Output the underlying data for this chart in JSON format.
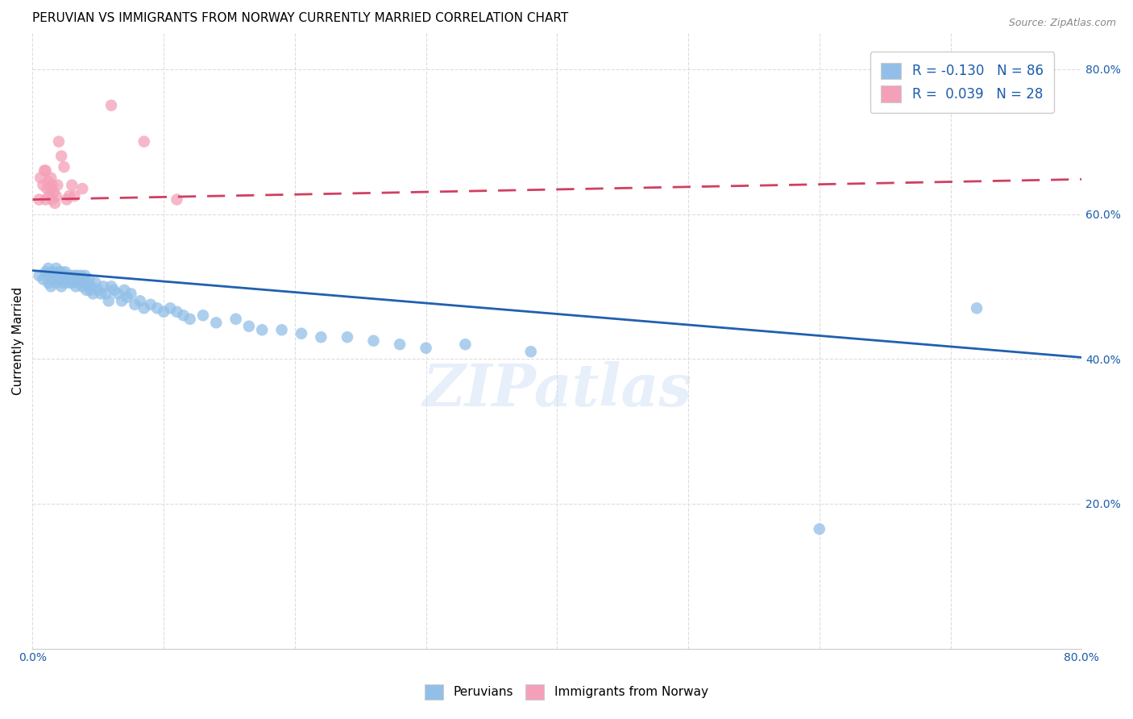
{
  "title": "PERUVIAN VS IMMIGRANTS FROM NORWAY CURRENTLY MARRIED CORRELATION CHART",
  "source": "Source: ZipAtlas.com",
  "ylabel": "Currently Married",
  "xlim": [
    0.0,
    0.8
  ],
  "ylim": [
    0.0,
    0.85
  ],
  "ytick_positions": [
    0.2,
    0.4,
    0.6,
    0.8
  ],
  "ytick_labels": [
    "20.0%",
    "40.0%",
    "60.0%",
    "80.0%"
  ],
  "blue_color": "#92bfe8",
  "pink_color": "#f4a0b8",
  "blue_line_color": "#2060b0",
  "pink_line_color": "#d04060",
  "blue_r": "-0.130",
  "blue_n": "86",
  "pink_r": "0.039",
  "pink_n": "28",
  "legend_r_color": "#1a5caa",
  "watermark": "ZIPatlas",
  "blue_points_x": [
    0.005,
    0.008,
    0.01,
    0.012,
    0.012,
    0.013,
    0.014,
    0.015,
    0.015,
    0.016,
    0.017,
    0.018,
    0.018,
    0.019,
    0.02,
    0.02,
    0.021,
    0.022,
    0.022,
    0.023,
    0.024,
    0.024,
    0.025,
    0.025,
    0.026,
    0.027,
    0.028,
    0.029,
    0.03,
    0.03,
    0.031,
    0.032,
    0.033,
    0.034,
    0.034,
    0.035,
    0.036,
    0.037,
    0.038,
    0.039,
    0.04,
    0.041,
    0.042,
    0.043,
    0.044,
    0.045,
    0.046,
    0.048,
    0.05,
    0.052,
    0.054,
    0.056,
    0.058,
    0.06,
    0.062,
    0.065,
    0.068,
    0.07,
    0.072,
    0.075,
    0.078,
    0.082,
    0.085,
    0.09,
    0.095,
    0.1,
    0.105,
    0.11,
    0.115,
    0.12,
    0.13,
    0.14,
    0.155,
    0.165,
    0.175,
    0.19,
    0.205,
    0.22,
    0.24,
    0.26,
    0.28,
    0.3,
    0.33,
    0.38,
    0.6,
    0.72
  ],
  "blue_points_y": [
    0.515,
    0.51,
    0.52,
    0.505,
    0.525,
    0.515,
    0.5,
    0.51,
    0.52,
    0.515,
    0.51,
    0.525,
    0.505,
    0.515,
    0.52,
    0.51,
    0.515,
    0.52,
    0.5,
    0.51,
    0.515,
    0.505,
    0.52,
    0.51,
    0.515,
    0.51,
    0.505,
    0.515,
    0.51,
    0.505,
    0.51,
    0.515,
    0.5,
    0.51,
    0.515,
    0.505,
    0.51,
    0.515,
    0.5,
    0.51,
    0.515,
    0.495,
    0.505,
    0.51,
    0.495,
    0.5,
    0.49,
    0.505,
    0.495,
    0.49,
    0.5,
    0.49,
    0.48,
    0.5,
    0.495,
    0.49,
    0.48,
    0.495,
    0.485,
    0.49,
    0.475,
    0.48,
    0.47,
    0.475,
    0.47,
    0.465,
    0.47,
    0.465,
    0.46,
    0.455,
    0.46,
    0.45,
    0.455,
    0.445,
    0.44,
    0.44,
    0.435,
    0.43,
    0.43,
    0.425,
    0.42,
    0.415,
    0.42,
    0.41,
    0.165,
    0.47
  ],
  "pink_points_x": [
    0.005,
    0.006,
    0.008,
    0.009,
    0.01,
    0.01,
    0.011,
    0.012,
    0.013,
    0.014,
    0.014,
    0.015,
    0.015,
    0.016,
    0.017,
    0.018,
    0.019,
    0.02,
    0.022,
    0.024,
    0.026,
    0.028,
    0.03,
    0.032,
    0.038,
    0.06,
    0.085,
    0.11
  ],
  "pink_points_y": [
    0.62,
    0.65,
    0.64,
    0.66,
    0.62,
    0.66,
    0.635,
    0.645,
    0.625,
    0.65,
    0.635,
    0.62,
    0.64,
    0.63,
    0.615,
    0.625,
    0.64,
    0.7,
    0.68,
    0.665,
    0.62,
    0.625,
    0.64,
    0.625,
    0.635,
    0.75,
    0.7,
    0.62
  ],
  "blue_trend_x": [
    0.0,
    0.8
  ],
  "blue_trend_y": [
    0.522,
    0.402
  ],
  "pink_trend_x": [
    0.0,
    0.8
  ],
  "pink_trend_y": [
    0.62,
    0.648
  ],
  "pink_trend_dashes": [
    8,
    5
  ],
  "background_color": "#ffffff",
  "grid_color": "#dddddd",
  "grid_style": "--",
  "title_fontsize": 11,
  "axis_label_fontsize": 11,
  "tick_fontsize": 10,
  "tick_color": "#1a5caa",
  "source_fontsize": 9,
  "legend_fontsize": 12,
  "scatter_size": 110,
  "scatter_alpha": 0.75
}
